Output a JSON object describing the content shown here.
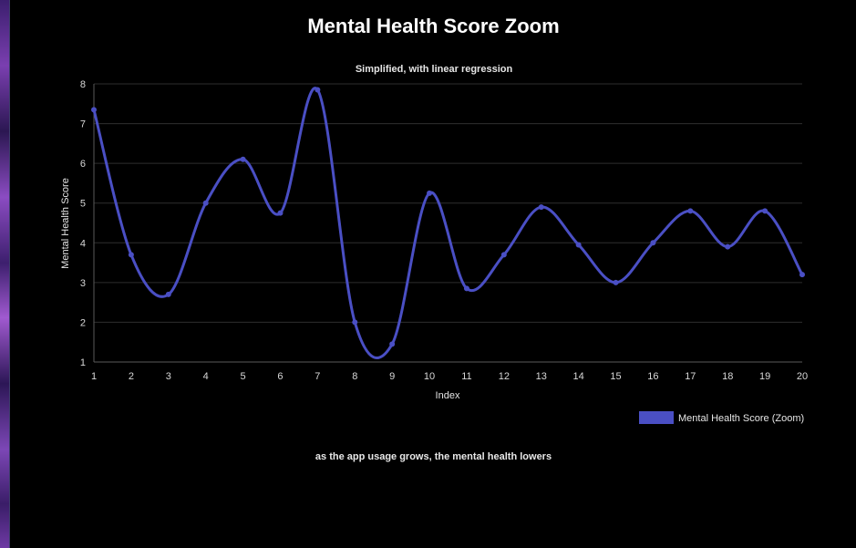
{
  "page": {
    "title": "Mental Health Score Zoom",
    "footnote": "as the app usage grows, the mental health lowers"
  },
  "chart_data": {
    "type": "line",
    "title": "Simplified, with linear regression",
    "xlabel": "Index",
    "ylabel": "Mental Health Score",
    "x": [
      1,
      2,
      3,
      4,
      5,
      6,
      7,
      8,
      9,
      10,
      11,
      12,
      13,
      14,
      15,
      16,
      17,
      18,
      19,
      20
    ],
    "series": [
      {
        "name": "Mental Health Score (Zoom)",
        "color": "#4a4fc4",
        "values": [
          7.35,
          3.7,
          2.7,
          5.0,
          6.1,
          4.75,
          7.85,
          2.0,
          1.45,
          5.25,
          2.85,
          3.7,
          4.9,
          3.95,
          3.0,
          4.0,
          4.8,
          3.9,
          4.8,
          3.2
        ]
      }
    ],
    "xlim": [
      1,
      20
    ],
    "ylim": [
      1,
      8
    ],
    "y_ticks": [
      "1",
      "2",
      "3",
      "4",
      "5",
      "6",
      "7",
      "8"
    ],
    "x_ticks": [
      "1",
      "2",
      "3",
      "4",
      "5",
      "6",
      "7",
      "8",
      "9",
      "10",
      "11",
      "12",
      "13",
      "14",
      "15",
      "16",
      "17",
      "18",
      "19",
      "20"
    ],
    "grid": true,
    "legend_position": "bottom-right",
    "smooth": true
  }
}
